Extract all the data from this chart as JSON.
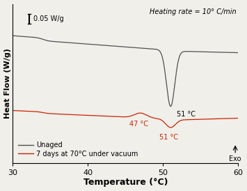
{
  "xlabel": "Temperature (°C)",
  "ylabel": "Heat Flow (W/g)",
  "xlim": [
    30,
    60
  ],
  "heating_rate_text": "Heating rate = 10° C/min",
  "scale_bar_label": "0.05 W/g",
  "black_label": "Unaged",
  "red_label": "7 days at 70°C under vacuum",
  "black_ann": "51 °C",
  "red_ann_1": "47 °C",
  "red_ann_2": "51 °C",
  "exo_text": "Exo",
  "black_color": "#505050",
  "red_color": "#cc2200",
  "bg_color": "#f0efea"
}
